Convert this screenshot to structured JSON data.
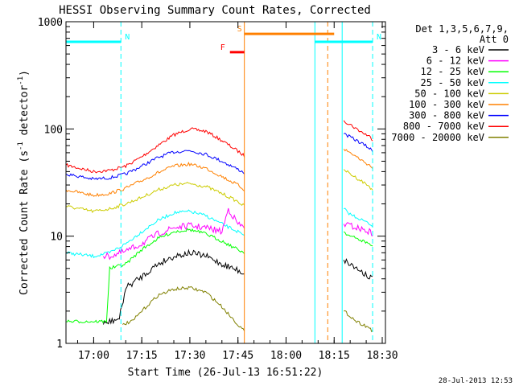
{
  "chart_data": {
    "type": "line",
    "title": "HESSI Observing Summary Count Rates, Corrected",
    "xlabel": "Start Time (26-Jul-13 16:51:22)",
    "ylabel_main": "Corrected Count Rate (s",
    "ylabel_sup1": "-1",
    "ylabel_mid": " detector",
    "ylabel_sup2": "-1",
    "ylabel_end": ")",
    "y_scale": "log",
    "ylim": [
      1,
      1000
    ],
    "xlim": [
      "16:51:22",
      "18:31:00"
    ],
    "x_ticks": [
      "17:00",
      "17:15",
      "17:30",
      "17:45",
      "18:00",
      "18:15",
      "18:30"
    ],
    "y_ticks": [
      "1",
      "10",
      "100",
      "1000"
    ],
    "timestamp": "28-Jul-2013 12:53",
    "legend": {
      "placement": "right",
      "header1": "Det 1,3,5,6,7,9,",
      "header2": "Att 0",
      "entries": [
        {
          "label": "3 - 6 keV",
          "color": "#000000"
        },
        {
          "label": "6 - 12 keV",
          "color": "#ff00ff"
        },
        {
          "label": "12 - 25 keV",
          "color": "#00ff00"
        },
        {
          "label": "25 - 50 keV",
          "color": "#00ffff"
        },
        {
          "label": "50 - 100 keV",
          "color": "#cccc00"
        },
        {
          "label": "100 - 300 keV",
          "color": "#ff8000"
        },
        {
          "label": "300 - 800 keV",
          "color": "#0000ff"
        },
        {
          "label": "800 - 7000 keV",
          "color": "#ff0000"
        },
        {
          "label": "7000 - 20000 keV",
          "color": "#808000"
        }
      ]
    },
    "flags": [
      {
        "label": "N",
        "color": "#00ffff",
        "start": "16:51:22",
        "end": "17:08:30",
        "level": 650
      },
      {
        "label": "N",
        "color": "#00ffff",
        "start": "18:09:00",
        "end": "18:27:00",
        "level": 650
      },
      {
        "label": "S",
        "color": "#ff8000",
        "start": "17:47:00",
        "end": "18:15:00",
        "level": 770
      },
      {
        "label": "F",
        "color": "#ff0000",
        "start": "17:42:30",
        "end": "17:47:00",
        "level": 520
      }
    ],
    "markers": [
      {
        "time": "17:08:30",
        "color": "#00ffff",
        "style": "dashed"
      },
      {
        "time": "17:47:00",
        "color": "#ff8000",
        "style": "solid"
      },
      {
        "time": "18:09:00",
        "color": "#00ffff",
        "style": "solid"
      },
      {
        "time": "18:13:00",
        "color": "#ff8000",
        "style": "dashed"
      },
      {
        "time": "18:17:30",
        "color": "#00ffff",
        "style": "solid"
      },
      {
        "time": "18:27:00",
        "color": "#00ffff",
        "style": "dashed"
      }
    ],
    "series": [
      {
        "name": "800 - 7000 keV",
        "color": "#ff0000",
        "segments": [
          {
            "x": [
              "16:51:22",
              "17:00",
              "17:05",
              "17:10",
              "17:15",
              "17:20",
              "17:25",
              "17:30",
              "17:35",
              "17:40",
              "17:45",
              "17:47"
            ],
            "y": [
              46,
              40,
              41,
              45,
              55,
              70,
              88,
              100,
              95,
              78,
              62,
              56
            ]
          },
          {
            "x": [
              "18:18",
              "18:20",
              "18:22",
              "18:24",
              "18:26",
              "18:27"
            ],
            "y": [
              120,
              110,
              100,
              92,
              85,
              80
            ]
          }
        ]
      },
      {
        "name": "300 - 800 keV",
        "color": "#0000ff",
        "segments": [
          {
            "x": [
              "16:51:22",
              "17:00",
              "17:05",
              "17:10",
              "17:15",
              "17:20",
              "17:25",
              "17:30",
              "17:35",
              "17:40",
              "17:45",
              "17:47"
            ],
            "y": [
              38,
              34,
              35,
              38,
              45,
              54,
              61,
              63,
              58,
              50,
              42,
              39
            ]
          },
          {
            "x": [
              "18:18",
              "18:20",
              "18:22",
              "18:24",
              "18:26",
              "18:27"
            ],
            "y": [
              90,
              84,
              78,
              72,
              66,
              62
            ]
          }
        ]
      },
      {
        "name": "100 - 300 keV",
        "color": "#ff8000",
        "segments": [
          {
            "x": [
              "16:51:22",
              "17:00",
              "17:05",
              "17:10",
              "17:15",
              "17:20",
              "17:25",
              "17:30",
              "17:35",
              "17:40",
              "17:45",
              "17:47"
            ],
            "y": [
              27,
              24,
              25,
              28,
              33,
              39,
              45,
              47,
              43,
              36,
              30,
              27
            ]
          },
          {
            "x": [
              "18:18",
              "18:20",
              "18:22",
              "18:24",
              "18:26",
              "18:27"
            ],
            "y": [
              65,
              60,
              55,
              50,
              46,
              43
            ]
          }
        ]
      },
      {
        "name": "50 - 100 keV",
        "color": "#cccc00",
        "segments": [
          {
            "x": [
              "16:51:22",
              "17:00",
              "17:05",
              "17:10",
              "17:15",
              "17:20",
              "17:25",
              "17:30",
              "17:35",
              "17:40",
              "17:45",
              "17:47"
            ],
            "y": [
              19,
              17,
              18,
              20,
              23,
              27,
              30,
              31,
              29,
              25,
              21,
              19
            ]
          },
          {
            "x": [
              "18:18",
              "18:20",
              "18:22",
              "18:24",
              "18:26",
              "18:27"
            ],
            "y": [
              42,
              38,
              35,
              32,
              29,
              27
            ]
          }
        ]
      },
      {
        "name": "25 - 50 keV",
        "color": "#00ffff",
        "segments": [
          {
            "x": [
              "16:51:22",
              "17:00",
              "17:05",
              "17:10",
              "17:15",
              "17:20",
              "17:25",
              "17:30",
              "17:35",
              "17:40",
              "17:45",
              "17:47"
            ],
            "y": [
              7,
              6.5,
              7,
              8.5,
              11,
              14,
              16.5,
              17,
              15.5,
              13,
              11,
              10
            ]
          },
          {
            "x": [
              "18:18",
              "18:20",
              "18:22",
              "18:24",
              "18:26",
              "18:27"
            ],
            "y": [
              18,
              16,
              15,
              14,
              13,
              12.5
            ]
          }
        ]
      },
      {
        "name": "6 - 12 keV",
        "color": "#ff00ff",
        "segments": [
          {
            "x": [
              "17:03",
              "17:05",
              "17:10",
              "17:15",
              "17:20",
              "17:25",
              "17:30",
              "17:35",
              "17:40",
              "17:42",
              "17:45",
              "17:47"
            ],
            "y": [
              6.5,
              6.5,
              7.2,
              8.5,
              10.5,
              12,
              12.5,
              12,
              11,
              18,
              13,
              12
            ]
          },
          {
            "x": [
              "18:18",
              "18:20",
              "18:22",
              "18:24",
              "18:26",
              "18:27"
            ],
            "y": [
              13,
              12.5,
              12,
              11.5,
              11,
              10.5
            ]
          }
        ]
      },
      {
        "name": "12 - 25 keV",
        "color": "#00ff00",
        "segments": [
          {
            "x": [
              "16:51:22",
              "17:00",
              "17:04",
              "17:05",
              "17:10",
              "17:15",
              "17:20",
              "17:25",
              "17:30",
              "17:35",
              "17:40",
              "17:45",
              "17:47"
            ],
            "y": [
              1.6,
              1.6,
              1.6,
              5,
              5.5,
              7.5,
              9.5,
              11,
              11.5,
              10.5,
              9,
              7.5,
              7
            ]
          },
          {
            "x": [
              "18:18",
              "18:20",
              "18:22",
              "18:24",
              "18:26",
              "18:27"
            ],
            "y": [
              11,
              10,
              9.5,
              9,
              8.5,
              8
            ]
          }
        ]
      },
      {
        "name": "3 - 6 keV",
        "color": "#000000",
        "segments": [
          {
            "x": [
              "17:03",
              "17:05",
              "17:08",
              "17:10",
              "17:15",
              "17:20",
              "17:25",
              "17:30",
              "17:35",
              "17:40",
              "17:45",
              "17:47"
            ],
            "y": [
              1.5,
              1.6,
              1.7,
              3.3,
              4.2,
              5.5,
              6.5,
              7,
              6.5,
              5.5,
              4.8,
              4.5
            ]
          },
          {
            "x": [
              "18:18",
              "18:20",
              "18:22",
              "18:24",
              "18:26",
              "18:27"
            ],
            "y": [
              6,
              5.5,
              5,
              4.6,
              4.2,
              4
            ]
          }
        ]
      },
      {
        "name": "7000 - 20000 keV",
        "color": "#808000",
        "segments": [
          {
            "x": [
              "17:09",
              "17:12",
              "17:15",
              "17:20",
              "17:25",
              "17:30",
              "17:35",
              "17:40",
              "17:45",
              "17:47"
            ],
            "y": [
              1.5,
              1.6,
              2,
              2.8,
              3.2,
              3.3,
              3,
              2.2,
              1.5,
              1.3
            ]
          },
          {
            "x": [
              "18:18",
              "18:20",
              "18:22",
              "18:24",
              "18:26",
              "18:27"
            ],
            "y": [
              2,
              1.8,
              1.6,
              1.5,
              1.4,
              1.3
            ]
          }
        ]
      }
    ]
  }
}
